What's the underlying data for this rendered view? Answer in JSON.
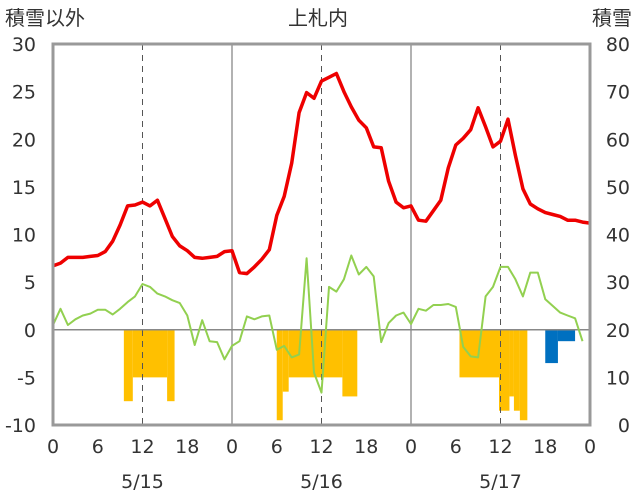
{
  "chart_data": {
    "type": "bar+line",
    "title": "上札内",
    "left_axis_label": "積雪以外",
    "right_axis_label": "積雪",
    "left_ylim": [
      -10,
      30
    ],
    "left_yticks": [
      -10,
      -5,
      0,
      5,
      10,
      15,
      20,
      25,
      30
    ],
    "right_ylim": [
      0,
      80
    ],
    "right_yticks": [
      0,
      10,
      20,
      30,
      40,
      50,
      60,
      70,
      80
    ],
    "x_range_hours": [
      0,
      72
    ],
    "x_tick_labels": [
      "0",
      "6",
      "12",
      "18",
      "0",
      "6",
      "12",
      "18",
      "0",
      "6",
      "12",
      "18",
      "0"
    ],
    "date_labels": [
      "5/15",
      "5/16",
      "5/17"
    ],
    "grid": "vertical dashed lines at 12h, solid day separators",
    "colors": {
      "temperature": "#ee0000",
      "humidity_line": "#92d050",
      "precip_bar": "#ffc000",
      "snow_bar": "#0070c0",
      "frame": "#999999"
    },
    "series": [
      {
        "name": "",
        "kind": "line",
        "axis": "left",
        "color": "#ee0000",
        "x": [
          0,
          1,
          2,
          3,
          4,
          5,
          6,
          7,
          8,
          9,
          10,
          11,
          12,
          13,
          14,
          15,
          16,
          17,
          18,
          19,
          20,
          21,
          22,
          23,
          24,
          25,
          26,
          27,
          28,
          29,
          30,
          31,
          32,
          33,
          34,
          35,
          36,
          37,
          38,
          39,
          40,
          41,
          42,
          43,
          44,
          45,
          46,
          47,
          48,
          49,
          50,
          51,
          52,
          53,
          54,
          55,
          56,
          57,
          58,
          59,
          60,
          61,
          62,
          63,
          64,
          65,
          66,
          67,
          68,
          69,
          70,
          71,
          72
        ],
        "values": [
          6.7,
          7.0,
          7.6,
          7.6,
          7.6,
          7.7,
          7.8,
          8.2,
          9.3,
          11.0,
          13.0,
          13.1,
          13.4,
          13.0,
          13.6,
          11.7,
          9.8,
          8.8,
          8.3,
          7.6,
          7.5,
          7.6,
          7.7,
          8.2,
          8.3,
          6.0,
          5.9,
          6.6,
          7.4,
          8.4,
          12.0,
          14.0,
          17.5,
          22.8,
          24.9,
          24.3,
          26.1,
          26.5,
          26.9,
          25.0,
          23.4,
          22.0,
          21.2,
          19.2,
          19.1,
          15.6,
          13.4,
          12.8,
          13.0,
          11.5,
          11.4,
          12.5,
          13.6,
          17.0,
          19.4,
          20.1,
          21.0,
          23.3,
          21.3,
          19.2,
          19.8,
          22.1,
          18.3,
          14.8,
          13.2,
          12.7,
          12.3,
          12.1,
          11.9,
          11.5,
          11.5,
          11.3,
          11.2
        ]
      },
      {
        "name": "",
        "kind": "line",
        "axis": "left",
        "color": "#92d050",
        "x": [
          0,
          1,
          2,
          3,
          4,
          5,
          6,
          7,
          8,
          9,
          10,
          11,
          12,
          13,
          14,
          15,
          16,
          17,
          18,
          19,
          20,
          21,
          22,
          23,
          24,
          25,
          26,
          27,
          28,
          29,
          30,
          31,
          32,
          33,
          34,
          35,
          36,
          37,
          38,
          39,
          40,
          41,
          42,
          43,
          44,
          45,
          46,
          47,
          48,
          49,
          50,
          51,
          52,
          53,
          54,
          55,
          56,
          57,
          58,
          59,
          60,
          61,
          62,
          63,
          64,
          65,
          66,
          67,
          68,
          69,
          70,
          71,
          72
        ],
        "values": [
          0.5,
          2.2,
          0.5,
          1.1,
          1.5,
          1.7,
          2.1,
          2.1,
          1.6,
          2.2,
          2.9,
          3.5,
          4.8,
          4.5,
          3.8,
          3.5,
          3.1,
          2.8,
          1.5,
          -1.6,
          1.0,
          -1.2,
          -1.3,
          -3.1,
          -1.7,
          -1.2,
          1.4,
          1.1,
          1.4,
          1.5,
          -2.1,
          -1.7,
          -2.9,
          -2.6,
          7.5,
          -4.5,
          -6.6,
          4.5,
          4.0,
          5.3,
          7.8,
          5.8,
          6.6,
          5.6,
          -1.3,
          0.7,
          1.5,
          1.8,
          0.6,
          2.2,
          2.0,
          2.6,
          2.6,
          2.7,
          2.4,
          -1.8,
          -2.8,
          -2.9,
          3.5,
          4.5,
          6.6,
          6.6,
          5.3,
          3.5,
          6.0,
          6.0,
          3.2,
          2.5,
          1.8,
          1.5,
          1.2,
          -1.2,
          null
        ]
      },
      {
        "name": "",
        "kind": "bar",
        "axis": "right",
        "color": "#ffc000",
        "bars": [
          {
            "start": 9.5,
            "end": 10.7,
            "value": 5
          },
          {
            "start": 10.7,
            "end": 15.3,
            "value": 10
          },
          {
            "start": 15.3,
            "end": 16.3,
            "value": 5
          },
          {
            "start": 30.0,
            "end": 30.8,
            "value": 1
          },
          {
            "start": 30.8,
            "end": 31.6,
            "value": 7
          },
          {
            "start": 31.6,
            "end": 38.8,
            "value": 10
          },
          {
            "start": 38.8,
            "end": 40.8,
            "value": 6
          },
          {
            "start": 54.5,
            "end": 59.8,
            "value": 10
          },
          {
            "start": 59.8,
            "end": 61.2,
            "value": 3
          },
          {
            "start": 61.2,
            "end": 61.8,
            "value": 6
          },
          {
            "start": 61.8,
            "end": 62.6,
            "value": 3
          },
          {
            "start": 62.6,
            "end": 63.6,
            "value": 1
          }
        ]
      },
      {
        "name": "",
        "kind": "bar",
        "axis": "left",
        "color": "#0070c0",
        "bars": [
          {
            "start": 66.0,
            "end": 67.7,
            "value": -3.5
          },
          {
            "start": 67.7,
            "end": 70.0,
            "value": -1.2
          }
        ]
      }
    ]
  }
}
